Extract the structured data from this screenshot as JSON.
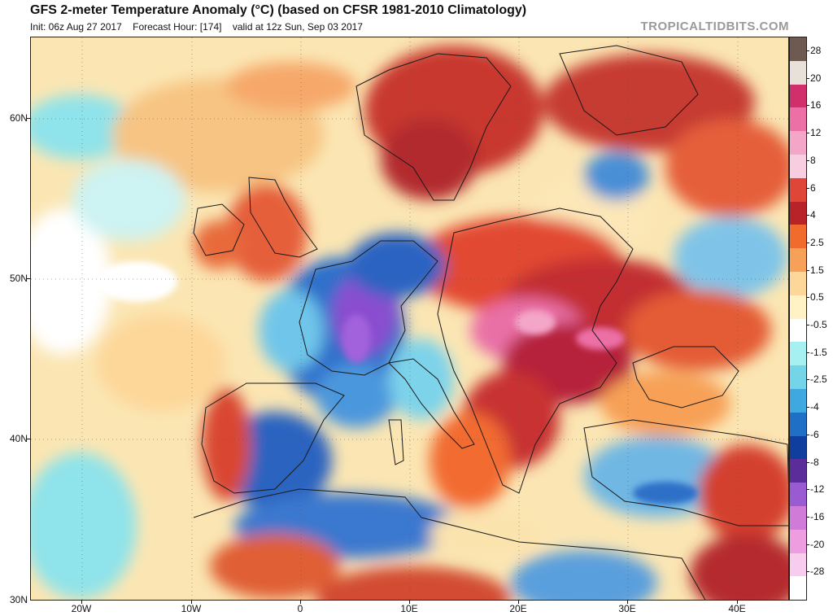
{
  "header": {
    "title": "GFS 2-meter Temperature Anomaly (°C) (based on CFSR 1981-2010 Climatology)",
    "init": "Init: 06z Aug 27 2017",
    "forecast_hour": "Forecast Hour: [174]",
    "valid": "valid at 12z Sun, Sep 03 2017",
    "brand": "TROPICALTIDBITS.COM"
  },
  "axes": {
    "lat_labels": [
      "60N",
      "50N",
      "40N",
      "30N"
    ],
    "lon_labels": [
      "20W",
      "10W",
      "0",
      "10E",
      "20E",
      "30E",
      "40E"
    ]
  },
  "colorbar": {
    "labels": [
      "28",
      "20",
      "16",
      "12",
      "8",
      "6",
      "4",
      "2.5",
      "1.5",
      "0.5",
      "-0.5",
      "-1.5",
      "-2.5",
      "-4",
      "-6",
      "-8",
      "-12",
      "-16",
      "-20",
      "-28"
    ],
    "colors": [
      "#6e5a50",
      "#e8e1d9",
      "#d12f6b",
      "#ec6fa6",
      "#f4a6c9",
      "#f9cde0",
      "#e04638",
      "#b8232a",
      "#f06b2c",
      "#f7a057",
      "#fdd79a",
      "#fff3c6",
      "#ffffff",
      "#a6f0f2",
      "#74d4e8",
      "#3fa8e0",
      "#1f6fc6",
      "#103e9e",
      "#5b2d9a",
      "#9a5ad1",
      "#cf7bd7",
      "#ee9ee0",
      "#f8ccee",
      "#ffffff"
    ]
  }
}
